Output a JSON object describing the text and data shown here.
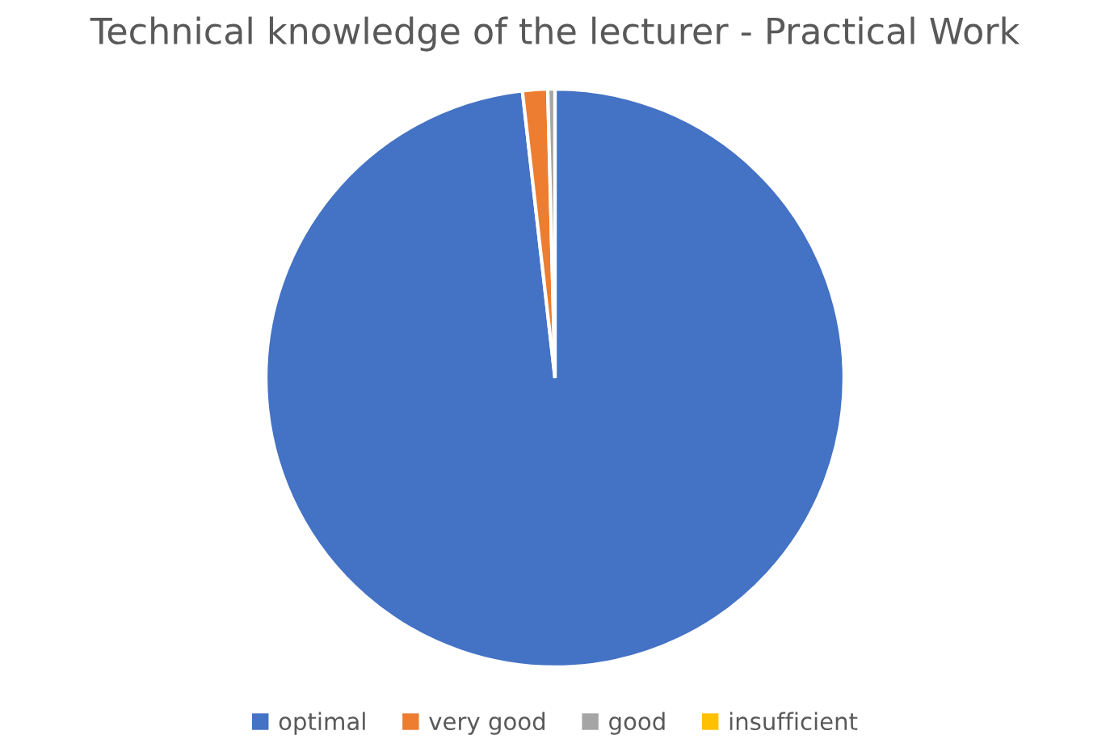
{
  "chart_data": {
    "type": "pie",
    "title": "Technical knowledge of the lecturer - Practical Work",
    "categories": [
      "optimal",
      "very good",
      "good",
      "insufficient"
    ],
    "values": [
      98.2,
      1.4,
      0.4,
      0
    ],
    "colors": [
      "#4472c4",
      "#ed7d31",
      "#a5a5a5",
      "#ffc000"
    ],
    "legend": "bottom"
  }
}
